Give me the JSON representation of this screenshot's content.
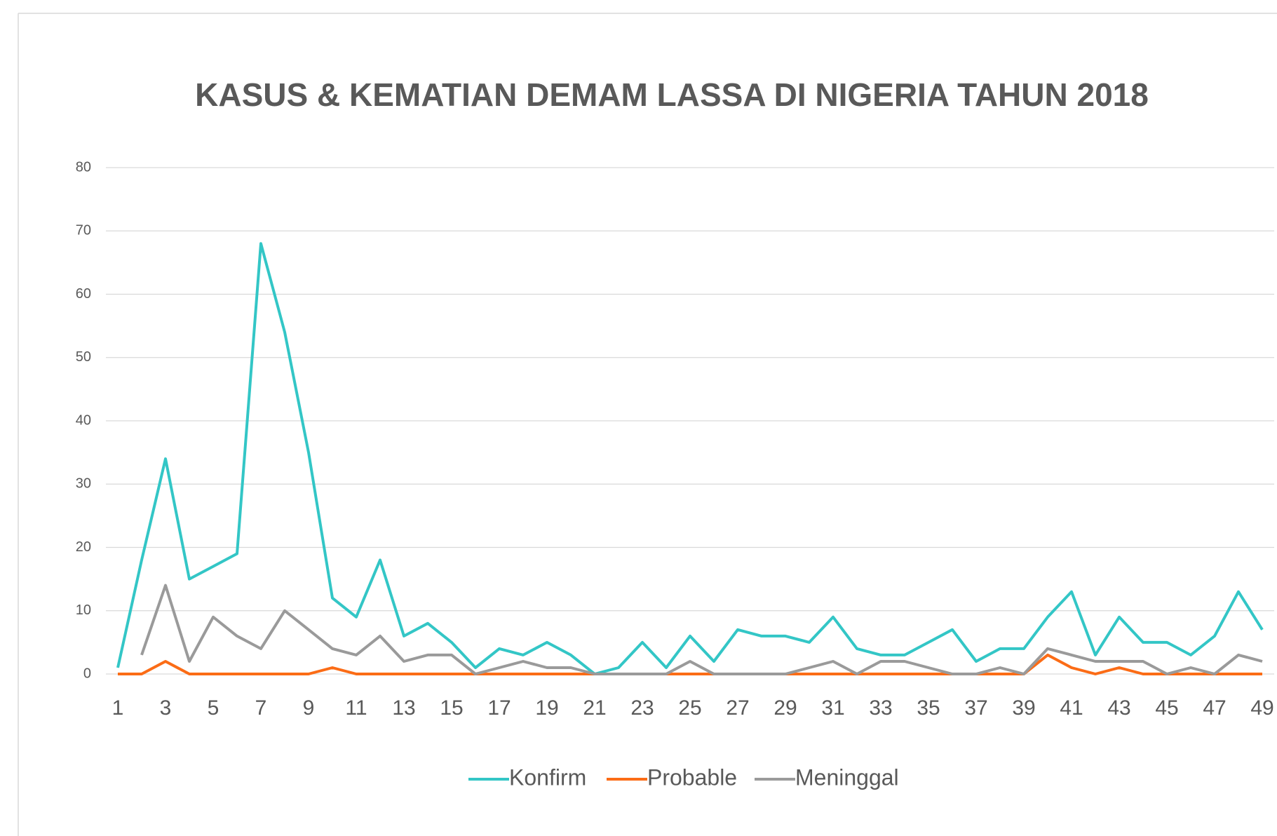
{
  "chart_data": {
    "type": "line",
    "title": "KASUS & KEMATIAN DEMAM LASSA DI NIGERIA TAHUN 2018",
    "categories": [
      1,
      null,
      3,
      null,
      5,
      null,
      7,
      null,
      9,
      null,
      11,
      null,
      13,
      null,
      15,
      null,
      17,
      null,
      19,
      null,
      21,
      null,
      23,
      null,
      25,
      null,
      27,
      null,
      29,
      null,
      31,
      null,
      33,
      null,
      35,
      null,
      37,
      null,
      39,
      null,
      41,
      null,
      43,
      null,
      45,
      null,
      47,
      null,
      49
    ],
    "series": [
      {
        "name": "Konfirm",
        "color": "#33c6c6",
        "values": [
          1,
          18,
          34,
          15,
          17,
          19,
          68,
          54,
          35,
          12,
          9,
          18,
          6,
          8,
          5,
          1,
          4,
          3,
          5,
          3,
          0,
          1,
          5,
          1,
          6,
          2,
          7,
          6,
          6,
          5,
          9,
          4,
          3,
          3,
          5,
          7,
          2,
          4,
          4,
          9,
          13,
          3,
          9,
          5,
          5,
          3,
          6,
          13,
          7
        ]
      },
      {
        "name": "Probable",
        "color": "#fb6c16",
        "values": [
          0,
          0,
          2,
          0,
          0,
          0,
          0,
          0,
          0,
          1,
          0,
          0,
          0,
          0,
          0,
          0,
          0,
          0,
          0,
          0,
          0,
          0,
          0,
          0,
          0,
          0,
          0,
          0,
          0,
          0,
          0,
          0,
          0,
          0,
          0,
          0,
          0,
          0,
          0,
          3,
          1,
          0,
          1,
          0,
          0,
          0,
          0,
          0,
          0
        ]
      },
      {
        "name": "Meninggal",
        "color": "#9a9a9a",
        "values": [
          null,
          3,
          14,
          2,
          9,
          6,
          4,
          10,
          7,
          4,
          3,
          6,
          2,
          3,
          3,
          0,
          1,
          2,
          1,
          1,
          0,
          0,
          0,
          0,
          2,
          0,
          0,
          0,
          0,
          1,
          2,
          0,
          2,
          2,
          1,
          0,
          0,
          1,
          0,
          4,
          3,
          2,
          2,
          2,
          0,
          1,
          0,
          3,
          2
        ]
      }
    ],
    "ylim": [
      0,
      80
    ],
    "yticks": [
      0,
      10,
      20,
      30,
      40,
      50,
      60,
      70,
      80
    ],
    "grid": true,
    "legend": "bottom"
  }
}
